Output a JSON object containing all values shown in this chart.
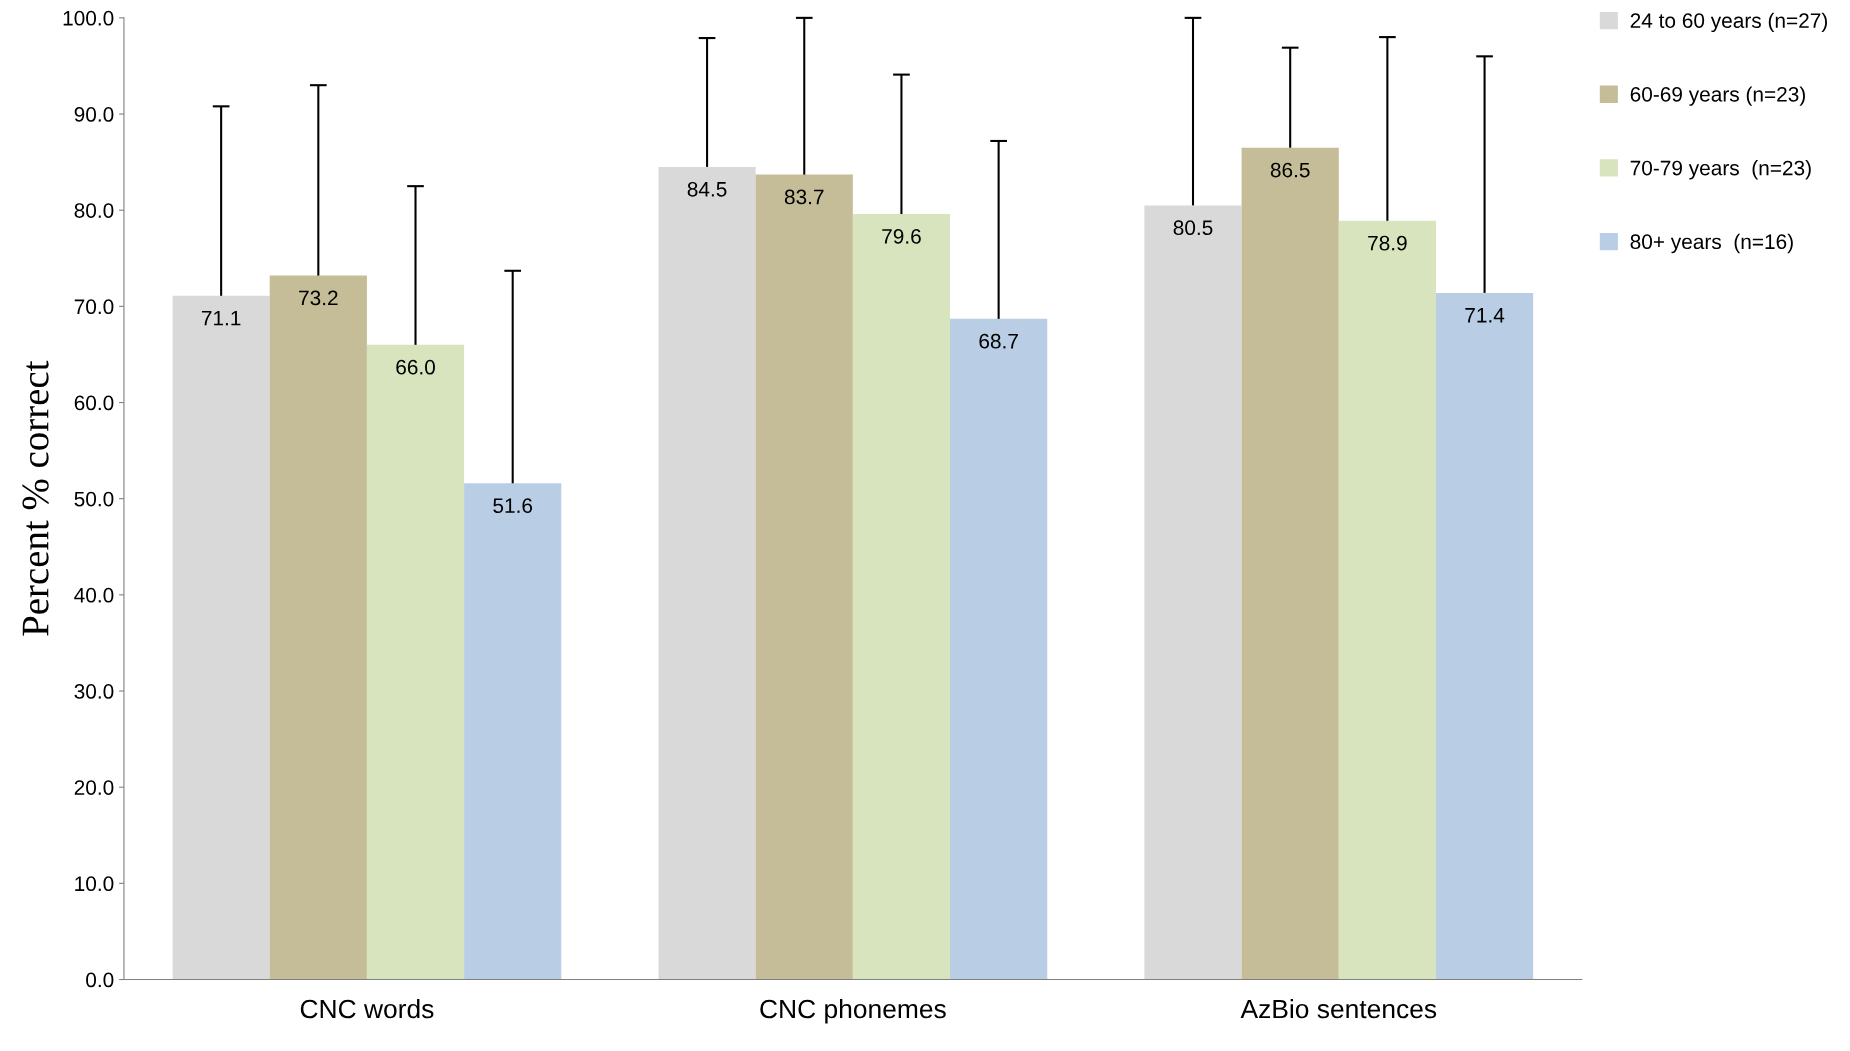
{
  "chart_data": {
    "type": "bar",
    "ylabel": "Percent % correct",
    "categories": [
      "CNC words",
      "CNC phonemes",
      "AzBio sentences"
    ],
    "series": [
      {
        "name": "24 to 60 years (n=27)",
        "color": "#d9d9d9",
        "values": [
          71.1,
          84.5,
          80.5
        ],
        "value_labels": [
          "71.1",
          "84.5",
          "80.5"
        ],
        "errors": [
          [
            71.1,
            90.8
          ],
          [
            84.5,
            97.9
          ],
          [
            80.5,
            100.0
          ]
        ]
      },
      {
        "name": "60-69 years (n=23)",
        "color": "#c4bd97",
        "values": [
          73.2,
          83.7,
          86.5
        ],
        "value_labels": [
          "73.2",
          "83.7",
          "86.5"
        ],
        "errors": [
          [
            73.2,
            93.0
          ],
          [
            83.7,
            100.0
          ],
          [
            86.5,
            96.9
          ]
        ]
      },
      {
        "name": "70-79 years  (n=23)",
        "color": "#d7e4bd",
        "values": [
          66.0,
          79.6,
          78.9
        ],
        "value_labels": [
          "66.0",
          "79.6",
          "78.9"
        ],
        "errors": [
          [
            66.0,
            82.5
          ],
          [
            79.6,
            94.1
          ],
          [
            78.9,
            98.0
          ]
        ]
      },
      {
        "name": "80+ years  (n=16)",
        "color": "#b9cde5",
        "values": [
          51.6,
          68.7,
          71.4
        ],
        "value_labels": [
          "51.6",
          "68.7",
          "71.4"
        ],
        "errors": [
          [
            51.6,
            73.7
          ],
          [
            68.7,
            87.2
          ],
          [
            71.4,
            96.0
          ]
        ]
      }
    ],
    "ylim": [
      0,
      100
    ],
    "yticks": [
      {
        "value": 0,
        "label": "0.0"
      },
      {
        "value": 10,
        "label": "10.0"
      },
      {
        "value": 20,
        "label": "20.0"
      },
      {
        "value": 30,
        "label": "30.0"
      },
      {
        "value": 40,
        "label": "40.0"
      },
      {
        "value": 50,
        "label": "50.0"
      },
      {
        "value": 60,
        "label": "60.0"
      },
      {
        "value": 70,
        "label": "70.0"
      },
      {
        "value": 80,
        "label": "80.0"
      },
      {
        "value": 90,
        "label": "90.0"
      },
      {
        "value": 100,
        "label": "100.0"
      }
    ],
    "grid": false,
    "legend": "top right"
  }
}
